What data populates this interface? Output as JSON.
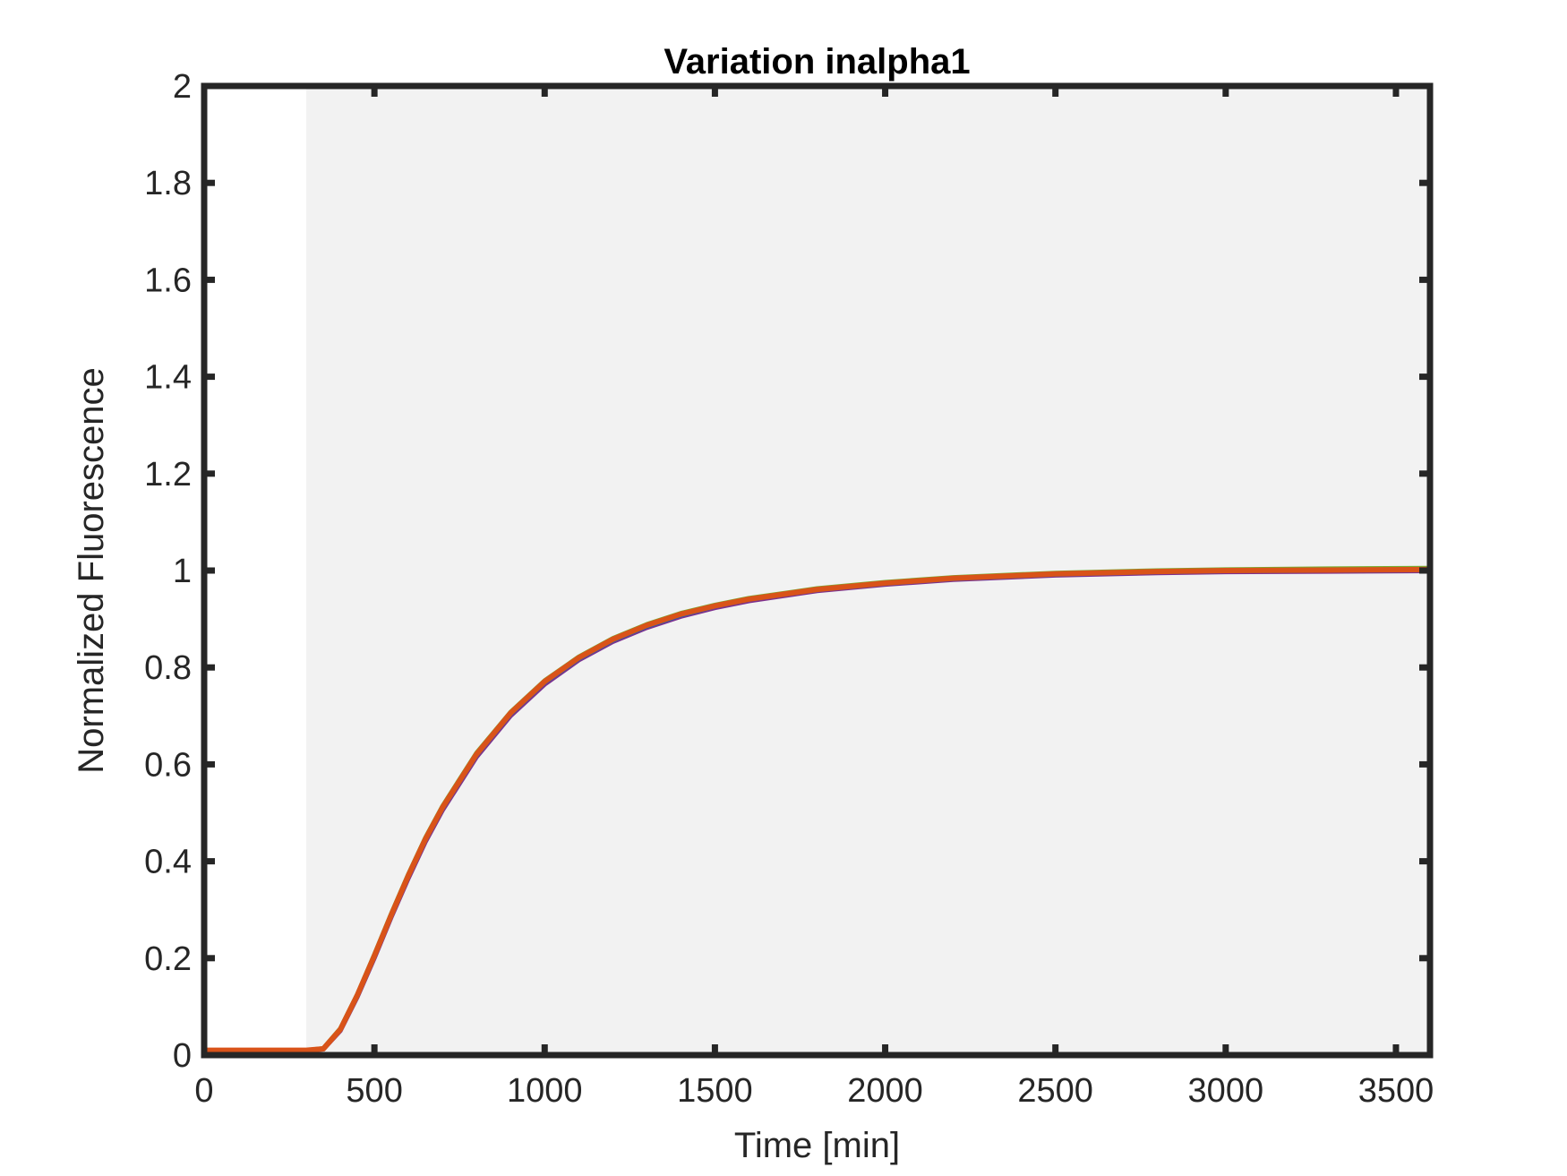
{
  "chart_data": {
    "type": "line",
    "title": "Variation inalpha1",
    "xlabel": "Time [min]",
    "ylabel": "Normalized Fluorescence",
    "xlim": [
      0,
      3600
    ],
    "ylim": [
      0,
      2
    ],
    "xticks": [
      0,
      500,
      1000,
      1500,
      2000,
      2500,
      3000,
      3500
    ],
    "yticks": [
      0,
      0.2,
      0.4,
      0.6,
      0.8,
      1,
      1.2,
      1.4,
      1.6,
      1.8,
      2
    ],
    "xtick_labels": [
      "0",
      "500",
      "1000",
      "1500",
      "2000",
      "2500",
      "3000",
      "3500"
    ],
    "ytick_labels": [
      "0",
      "0.2",
      "0.4",
      "0.6",
      "0.8",
      "1",
      "1.2",
      "1.4",
      "1.6",
      "1.8",
      "2"
    ],
    "grid": false,
    "shaded_region": {
      "x_start": 300,
      "x_end": 3600,
      "color": "#f2f2f2"
    },
    "axes_color": "#262626",
    "x": [
      0,
      300,
      350,
      400,
      450,
      500,
      550,
      600,
      650,
      700,
      800,
      900,
      1000,
      1100,
      1200,
      1300,
      1400,
      1500,
      1600,
      1800,
      2000,
      2200,
      2500,
      2800,
      3000,
      3300,
      3600
    ],
    "series": [
      {
        "color": "#7e2f8e",
        "values": [
          0.01,
          0.01,
          0.012,
          0.05,
          0.12,
          0.2,
          0.285,
          0.365,
          0.44,
          0.505,
          0.615,
          0.7,
          0.765,
          0.815,
          0.853,
          0.882,
          0.905,
          0.923,
          0.937,
          0.958,
          0.971,
          0.981,
          0.99,
          0.995,
          0.997,
          0.998,
          0.999
        ]
      },
      {
        "color": "#77ac30",
        "values": [
          0.01,
          0.01,
          0.014,
          0.055,
          0.126,
          0.208,
          0.293,
          0.374,
          0.449,
          0.514,
          0.624,
          0.708,
          0.773,
          0.822,
          0.86,
          0.889,
          0.912,
          0.929,
          0.943,
          0.963,
          0.976,
          0.986,
          0.995,
          1.0,
          1.002,
          1.004,
          1.005
        ]
      },
      {
        "color": "#0072bd",
        "values": [
          0.01,
          0.01,
          0.013,
          0.052,
          0.122,
          0.203,
          0.288,
          0.369,
          0.444,
          0.509,
          0.619,
          0.704,
          0.769,
          0.818,
          0.856,
          0.885,
          0.908,
          0.926,
          0.94,
          0.96,
          0.973,
          0.983,
          0.992,
          0.997,
          0.999,
          1.0,
          1.001
        ]
      },
      {
        "color": "#d95319",
        "values": [
          0.01,
          0.01,
          0.013,
          0.053,
          0.124,
          0.205,
          0.29,
          0.371,
          0.446,
          0.511,
          0.621,
          0.706,
          0.771,
          0.82,
          0.858,
          0.887,
          0.91,
          0.927,
          0.941,
          0.961,
          0.974,
          0.984,
          0.993,
          0.998,
          1.0,
          1.001,
          1.002
        ]
      }
    ]
  }
}
